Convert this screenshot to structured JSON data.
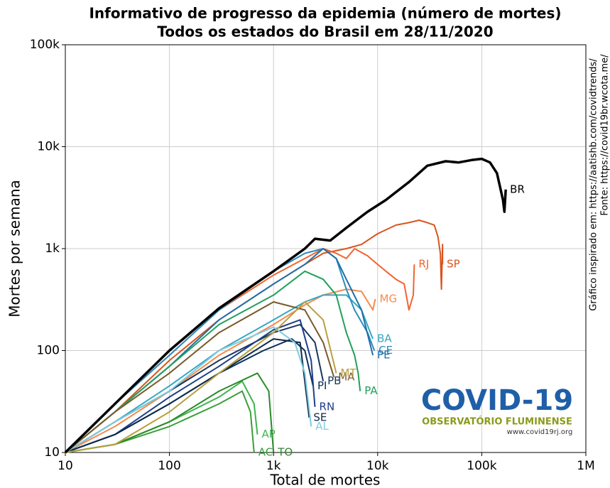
{
  "chart_data": {
    "type": "line",
    "title": "Informativo de progresso da epidemia (número de mortes)",
    "subtitle": "Todos os estados do Brasil em 28/11/2020",
    "x_label": "Total de mortes",
    "y_label": "Mortes por semana",
    "annotations": [
      "Gráfico inspirado em: https://aatishb.com/covidtrends/",
      "Fonte: https://covid19br.wcota.me/"
    ],
    "log_x": true,
    "log_y": true,
    "grid": true,
    "xlim": [
      10,
      1000000
    ],
    "ylim": [
      10,
      100000
    ],
    "xticks": [
      10,
      100,
      {
        "value": 1000,
        "label": "1k"
      },
      {
        "value": 10000,
        "label": "10k"
      },
      {
        "value": 100000,
        "label": "100k"
      },
      {
        "value": 1000000,
        "label": "1M"
      }
    ],
    "yticks": [
      10,
      100,
      {
        "value": 1000,
        "label": "1k"
      },
      {
        "value": 10000,
        "label": "10k"
      },
      {
        "value": 100000,
        "label": "100k"
      }
    ],
    "series": [
      {
        "name": "SP",
        "color": "#d9541e",
        "x": [
          10,
          30,
          100,
          300,
          1000,
          2000,
          3000,
          5000,
          7000,
          10000,
          15000,
          20000,
          25000,
          30000,
          35000,
          38000,
          40000,
          41000,
          42000,
          42000
        ],
        "values": [
          10,
          25,
          80,
          200,
          450,
          700,
          900,
          1000,
          1100,
          1400,
          1700,
          1800,
          1900,
          1800,
          1700,
          1300,
          900,
          400,
          1100,
          700
        ]
      },
      {
        "name": "RJ",
        "color": "#f26430",
        "x": [
          10,
          30,
          100,
          300,
          1000,
          2000,
          3000,
          4000,
          5000,
          6000,
          8000,
          10000,
          12000,
          15000,
          18000,
          20000,
          22000,
          22500
        ],
        "values": [
          10,
          30,
          90,
          250,
          550,
          800,
          1000,
          900,
          800,
          1000,
          850,
          700,
          600,
          500,
          450,
          250,
          350,
          700
        ]
      },
      {
        "name": "MG",
        "color": "#f58b4c",
        "x": [
          10,
          30,
          100,
          300,
          1000,
          2000,
          3000,
          5000,
          7000,
          9000,
          9500
        ],
        "values": [
          10,
          18,
          40,
          90,
          180,
          280,
          350,
          400,
          380,
          250,
          320
        ]
      },
      {
        "name": "BA",
        "color": "#35a7c2",
        "x": [
          10,
          30,
          100,
          300,
          1000,
          2000,
          3000,
          5000,
          7000,
          8500,
          9000
        ],
        "values": [
          10,
          20,
          45,
          100,
          200,
          300,
          350,
          350,
          250,
          150,
          130
        ]
      },
      {
        "name": "CE",
        "color": "#2b8cbe",
        "x": [
          10,
          30,
          100,
          300,
          1000,
          2000,
          3000,
          4000,
          5000,
          6000,
          8000,
          9300
        ],
        "values": [
          10,
          30,
          90,
          250,
          600,
          900,
          1000,
          800,
          400,
          250,
          150,
          100
        ]
      },
      {
        "name": "PE",
        "color": "#1f6fa8",
        "x": [
          10,
          30,
          100,
          300,
          1000,
          2000,
          3000,
          4000,
          5000,
          7000,
          9000
        ],
        "values": [
          10,
          25,
          70,
          200,
          450,
          700,
          1000,
          800,
          500,
          250,
          90
        ]
      },
      {
        "name": "PA",
        "color": "#1fa05a",
        "x": [
          10,
          30,
          100,
          300,
          1000,
          2000,
          3000,
          4000,
          5000,
          6000,
          6500,
          6800
        ],
        "values": [
          10,
          25,
          70,
          180,
          350,
          600,
          500,
          350,
          150,
          90,
          60,
          40
        ]
      },
      {
        "name": "PI",
        "color": "#0b2f5c",
        "x": [
          10,
          30,
          100,
          300,
          800,
          1500,
          2000,
          2400
        ],
        "values": [
          10,
          15,
          30,
          60,
          100,
          130,
          100,
          45
        ]
      },
      {
        "name": "PB",
        "color": "#17365d",
        "x": [
          10,
          30,
          100,
          300,
          1000,
          1800,
          2500,
          3000
        ],
        "values": [
          10,
          20,
          40,
          80,
          150,
          180,
          120,
          50
        ]
      },
      {
        "name": "RN",
        "color": "#1d3f8a",
        "x": [
          10,
          30,
          100,
          300,
          1000,
          1800,
          2300,
          2500
        ],
        "values": [
          10,
          15,
          35,
          70,
          160,
          200,
          80,
          28
        ]
      },
      {
        "name": "SE",
        "color": "#0e2a4a",
        "x": [
          10,
          30,
          100,
          300,
          1000,
          1800,
          2200
        ],
        "values": [
          10,
          15,
          30,
          60,
          130,
          120,
          22
        ]
      },
      {
        "name": "AL",
        "color": "#7ecbe0",
        "x": [
          10,
          30,
          100,
          300,
          1000,
          1600,
          2000,
          2300
        ],
        "values": [
          10,
          20,
          40,
          100,
          170,
          120,
          60,
          18
        ]
      },
      {
        "name": "AP",
        "color": "#3fb34f",
        "x": [
          10,
          30,
          100,
          300,
          500,
          650,
          700
        ],
        "values": [
          10,
          12,
          20,
          35,
          50,
          30,
          15
        ]
      },
      {
        "name": "AC",
        "color": "#3a9e3a",
        "x": [
          10,
          30,
          100,
          300,
          500,
          600,
          650
        ],
        "values": [
          10,
          12,
          18,
          30,
          40,
          25,
          10
        ]
      },
      {
        "name": "TO",
        "color": "#2c8a2c",
        "x": [
          10,
          30,
          100,
          300,
          700,
          900,
          1000
        ],
        "values": [
          10,
          12,
          20,
          40,
          60,
          40,
          10
        ]
      },
      {
        "name": "MA",
        "color": "#7a5a2a",
        "x": [
          10,
          30,
          100,
          300,
          1000,
          2000,
          3000,
          3800
        ],
        "values": [
          10,
          25,
          60,
          150,
          300,
          250,
          120,
          55
        ]
      },
      {
        "name": "MT",
        "color": "#b8a040",
        "x": [
          10,
          30,
          100,
          300,
          1000,
          2000,
          3000,
          4000
        ],
        "values": [
          10,
          12,
          25,
          60,
          150,
          300,
          200,
          60
        ]
      },
      {
        "name": "BR",
        "color": "#000000",
        "x": [
          10,
          30,
          100,
          300,
          1000,
          2000,
          2500,
          3500,
          5000,
          8000,
          12000,
          20000,
          30000,
          45000,
          60000,
          80000,
          100000,
          120000,
          140000,
          160000,
          165000,
          170000
        ],
        "values": [
          10,
          30,
          100,
          260,
          600,
          1000,
          1250,
          1200,
          1600,
          2300,
          3000,
          4500,
          6500,
          7200,
          7000,
          7400,
          7600,
          7000,
          5500,
          3000,
          2300,
          3800
        ]
      }
    ]
  },
  "logo": {
    "title": "COVID-19",
    "subtitle": "OBSERVATÓRIO FLUMINENSE",
    "url": "www.covid19rj.org"
  }
}
